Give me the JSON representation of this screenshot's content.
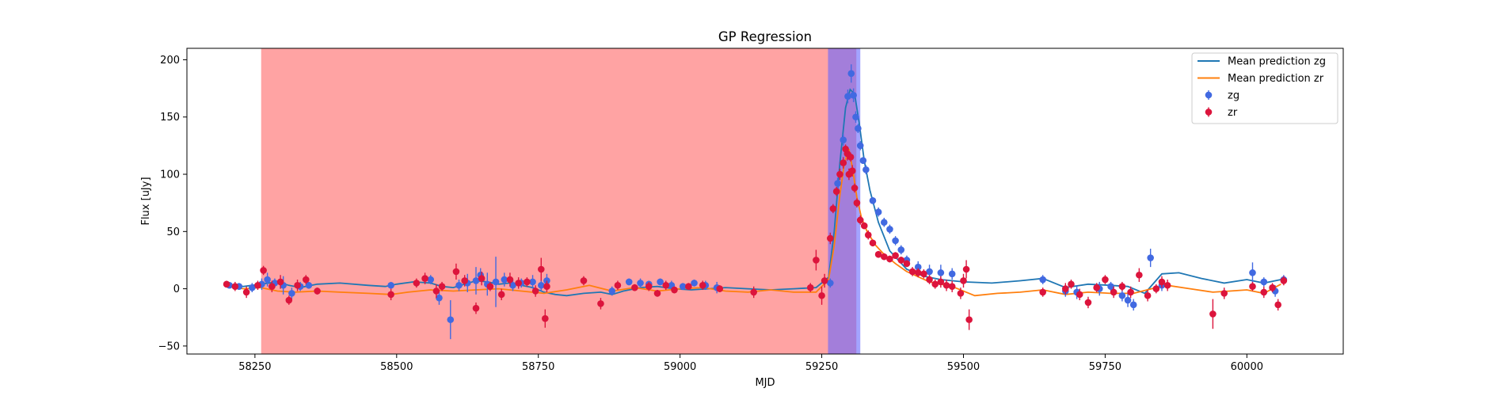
{
  "chart_data": {
    "type": "scatter",
    "title": "GP Regression",
    "xlabel": "MJD",
    "ylabel": "Flux [uJy]",
    "xlim": [
      58130,
      60170
    ],
    "ylim": [
      -57,
      210
    ],
    "xticks": [
      58250,
      58500,
      58750,
      59000,
      59250,
      59500,
      59750,
      60000
    ],
    "xtick_labels": [
      "58250",
      "58500",
      "58750",
      "59000",
      "59250",
      "59500",
      "59750",
      "60000"
    ],
    "yticks": [
      -50,
      0,
      50,
      100,
      150,
      200
    ],
    "ytick_labels": [
      "−50",
      "0",
      "50",
      "100",
      "150",
      "200"
    ],
    "legend_position": "top-right",
    "shaded_regions": [
      {
        "name": "red-region",
        "x0": 58261,
        "x1": 59311,
        "color": "#ff6666",
        "opacity": 0.6
      },
      {
        "name": "blue-region",
        "x0": 59261,
        "x1": 59318,
        "color": "#6666ff",
        "opacity": 0.6
      }
    ],
    "lines": [
      {
        "name": "Mean prediction zg",
        "color": "#1f77b4",
        "x": [
          58200,
          58230,
          58260,
          58290,
          58310,
          58330,
          58360,
          58400,
          58450,
          58480,
          58500,
          58530,
          58560,
          58580,
          58600,
          58620,
          58640,
          58660,
          58680,
          58700,
          58720,
          58740,
          58760,
          58780,
          58800,
          58830,
          58860,
          58880,
          58900,
          58930,
          58960,
          58990,
          59020,
          59050,
          59080,
          59120,
          59160,
          59200,
          59240,
          59262,
          59272,
          59282,
          59292,
          59300,
          59308,
          59316,
          59325,
          59335,
          59350,
          59370,
          59400,
          59430,
          59460,
          59500,
          59550,
          59600,
          59640,
          59680,
          59720,
          59760,
          59790,
          59820,
          59850,
          59880,
          59920,
          59960,
          60000,
          60030,
          60060
        ],
        "y": [
          3,
          2,
          4,
          6,
          3,
          1,
          4,
          5,
          3,
          2,
          4,
          6,
          5,
          2,
          1,
          4,
          7,
          6,
          4,
          5,
          3,
          1,
          -3,
          -5,
          -6,
          -4,
          -3,
          -5,
          -2,
          1,
          2,
          0,
          -1,
          0,
          1,
          0,
          -1,
          0,
          1,
          10,
          50,
          110,
          158,
          174,
          170,
          145,
          112,
          86,
          58,
          33,
          17,
          11,
          8,
          6,
          5,
          7,
          9,
          1,
          4,
          3,
          2,
          -4,
          13,
          14,
          9,
          5,
          8,
          5,
          8
        ]
      },
      {
        "name": "Mean prediction zr",
        "color": "#ff7f0e",
        "x": [
          58200,
          58230,
          58260,
          58290,
          58320,
          58360,
          58400,
          58450,
          58490,
          58520,
          58560,
          58600,
          58640,
          58680,
          58720,
          58760,
          58800,
          58840,
          58880,
          58920,
          58960,
          59000,
          59040,
          59080,
          59120,
          59160,
          59200,
          59240,
          59262,
          59272,
          59282,
          59290,
          59298,
          59305,
          59312,
          59320,
          59330,
          59345,
          59360,
          59380,
          59400,
          59440,
          59480,
          59520,
          59560,
          59600,
          59640,
          59680,
          59720,
          59760,
          59800,
          59840,
          59860,
          59900,
          59940,
          59970,
          60000,
          60030,
          60060
        ],
        "y": [
          2,
          0,
          1,
          -2,
          -3,
          -2,
          -3,
          -4,
          -5,
          -3,
          -1,
          -2,
          -1,
          0,
          -2,
          -4,
          -1,
          3,
          -2,
          1,
          -2,
          0,
          1,
          -2,
          -3,
          -1,
          -3,
          -3,
          8,
          38,
          82,
          110,
          122,
          103,
          80,
          62,
          50,
          38,
          30,
          22,
          15,
          6,
          2,
          -6,
          -4,
          -3,
          -1,
          -5,
          -3,
          -4,
          -4,
          1,
          3,
          0,
          -3,
          -2,
          -1,
          -4,
          4
        ]
      }
    ],
    "series": [
      {
        "name": "zg",
        "color": "#4169e1",
        "x": [
          58205,
          58222,
          58245,
          58262,
          58272,
          58285,
          58300,
          58315,
          58330,
          58345,
          58490,
          58560,
          58575,
          58595,
          58610,
          58625,
          58640,
          58648,
          58660,
          58675,
          58690,
          58705,
          58720,
          58740,
          58755,
          58765,
          58880,
          58910,
          58930,
          58945,
          58965,
          58985,
          59005,
          59025,
          59045,
          59065,
          59265,
          59278,
          59288,
          59296,
          59302,
          59306,
          59310,
          59314,
          59318,
          59323,
          59328,
          59340,
          59350,
          59360,
          59370,
          59380,
          59390,
          59400,
          59420,
          59440,
          59460,
          59480,
          59640,
          59680,
          59700,
          59740,
          59760,
          59780,
          59790,
          59800,
          59830,
          59850,
          60010,
          60030,
          60050,
          60065
        ],
        "y": [
          3,
          2,
          1,
          4,
          8,
          5,
          3,
          -4,
          2,
          3,
          3,
          8,
          -8,
          -27,
          3,
          5,
          7,
          12,
          4,
          6,
          8,
          3,
          5,
          6,
          3,
          7,
          -2,
          6,
          5,
          4,
          6,
          3,
          2,
          5,
          3,
          1,
          5,
          92,
          130,
          168,
          188,
          169,
          150,
          140,
          125,
          112,
          104,
          77,
          67,
          58,
          52,
          42,
          34,
          25,
          19,
          15,
          14,
          13,
          8,
          -2,
          -3,
          0,
          2,
          -6,
          -10,
          -14,
          27,
          3,
          14,
          6,
          -2,
          8
        ],
        "err": [
          2,
          3,
          4,
          5,
          6,
          4,
          8,
          5,
          4,
          3,
          3,
          4,
          6,
          17,
          5,
          8,
          12,
          6,
          10,
          22,
          6,
          5,
          4,
          6,
          5,
          6,
          4,
          3,
          4,
          3,
          3,
          4,
          3,
          3,
          4,
          5,
          4,
          5,
          5,
          6,
          8,
          6,
          5,
          4,
          4,
          3,
          4,
          3,
          4,
          4,
          4,
          4,
          4,
          4,
          5,
          6,
          7,
          5,
          4,
          5,
          6,
          6,
          4,
          5,
          6,
          5,
          8,
          5,
          9,
          4,
          5,
          4
        ]
      },
      {
        "name": "zr",
        "color": "#dc143c",
        "x": [
          58200,
          58215,
          58235,
          58255,
          58265,
          58280,
          58295,
          58310,
          58325,
          58340,
          58360,
          58490,
          58535,
          58550,
          58570,
          58580,
          58605,
          58620,
          58640,
          58650,
          58665,
          58685,
          58700,
          58715,
          58730,
          58745,
          58755,
          58762,
          58765,
          58830,
          58860,
          58890,
          58920,
          58945,
          58960,
          58975,
          58990,
          59015,
          59040,
          59070,
          59130,
          59230,
          59240,
          59250,
          59255,
          59265,
          59270,
          59276,
          59282,
          59288,
          59292,
          59295,
          59298,
          59301,
          59304,
          59308,
          59312,
          59318,
          59325,
          59332,
          59340,
          59350,
          59360,
          59370,
          59380,
          59390,
          59400,
          59410,
          59420,
          59430,
          59440,
          59450,
          59460,
          59470,
          59480,
          59495,
          59500,
          59505,
          59510,
          59640,
          59680,
          59690,
          59705,
          59720,
          59735,
          59750,
          59765,
          59780,
          59795,
          59810,
          59825,
          59840,
          59850,
          59860,
          59940,
          59960,
          60010,
          60030,
          60045,
          60055,
          60065
        ],
        "y": [
          4,
          2,
          -3,
          3,
          16,
          2,
          6,
          -10,
          3,
          8,
          -2,
          -5,
          5,
          9,
          -2,
          2,
          15,
          7,
          -17,
          9,
          2,
          -5,
          8,
          5,
          6,
          -2,
          17,
          -26,
          2,
          7,
          -13,
          3,
          1,
          2,
          -4,
          3,
          -1,
          2,
          3,
          0,
          -3,
          1,
          25,
          -6,
          7,
          44,
          70,
          85,
          100,
          110,
          122,
          118,
          100,
          115,
          103,
          88,
          75,
          60,
          55,
          47,
          40,
          30,
          28,
          26,
          29,
          25,
          22,
          15,
          14,
          13,
          8,
          4,
          6,
          3,
          2,
          -4,
          7,
          17,
          -27,
          -3,
          0,
          4,
          -5,
          -12,
          1,
          8,
          -3,
          2,
          -3,
          12,
          -6,
          0,
          6,
          3,
          -22,
          -4,
          2,
          -3,
          1,
          -14,
          7
        ],
        "err": [
          3,
          4,
          5,
          4,
          4,
          5,
          6,
          4,
          5,
          4,
          3,
          5,
          4,
          5,
          6,
          4,
          7,
          5,
          5,
          6,
          4,
          5,
          6,
          5,
          4,
          5,
          10,
          8,
          5,
          4,
          5,
          4,
          3,
          4,
          3,
          4,
          3,
          3,
          4,
          3,
          5,
          4,
          9,
          8,
          6,
          5,
          4,
          4,
          5,
          5,
          4,
          6,
          5,
          4,
          5,
          4,
          4,
          4,
          3,
          4,
          3,
          3,
          3,
          3,
          3,
          3,
          3,
          4,
          4,
          4,
          4,
          4,
          5,
          5,
          5,
          5,
          6,
          8,
          9,
          4,
          5,
          4,
          5,
          5,
          4,
          4,
          5,
          4,
          5,
          6,
          5,
          4,
          5,
          5,
          13,
          5,
          4,
          5,
          4,
          5,
          4
        ]
      }
    ],
    "legend": [
      {
        "label": "Mean prediction zg",
        "kind": "line",
        "color": "#1f77b4"
      },
      {
        "label": "Mean prediction zr",
        "kind": "line",
        "color": "#ff7f0e"
      },
      {
        "label": "zg",
        "kind": "errorbar",
        "color": "#4169e1"
      },
      {
        "label": "zr",
        "kind": "errorbar",
        "color": "#dc143c"
      }
    ]
  }
}
